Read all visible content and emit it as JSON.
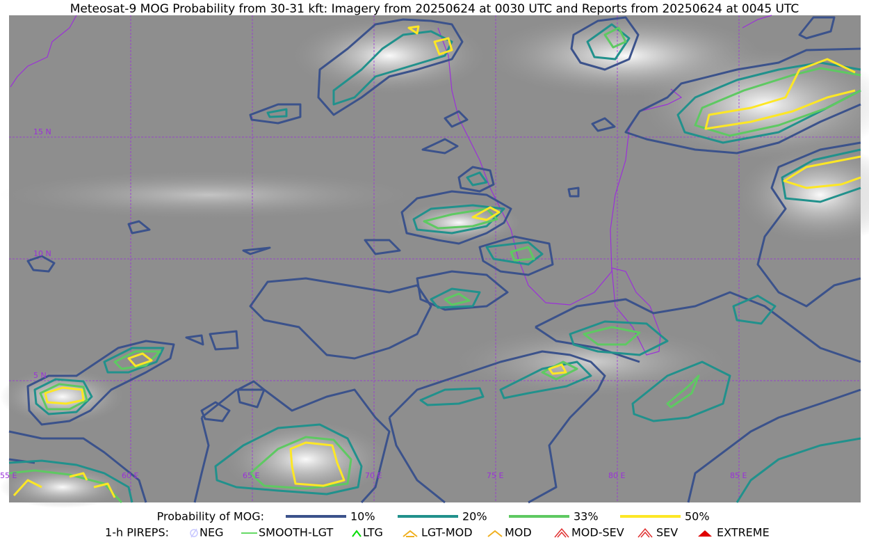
{
  "title": "Meteosat-9 MOG Probability from 30-31 kft: Imagery from 20250624 at 0030 UTC and Reports from 20250624 at 0045 UTC",
  "map": {
    "lat_labels": [
      "15 N",
      "10 N",
      "5 N"
    ],
    "lon_labels": [
      "55 E",
      "60 E",
      "65 E",
      "70 E",
      "75 E",
      "80 E",
      "85 E"
    ]
  },
  "legend": {
    "probability_label": "Probability of MOG:",
    "probability_levels": [
      "10%",
      "20%",
      "33%",
      "50%"
    ],
    "pireps_label": "1-h PIREPS:",
    "pireps": [
      "NEG",
      "SMOOTH-LGT",
      "LTG",
      "LGT-MOD",
      "MOD",
      "MOD-SEV",
      "SEV",
      "EXTREME"
    ]
  }
}
